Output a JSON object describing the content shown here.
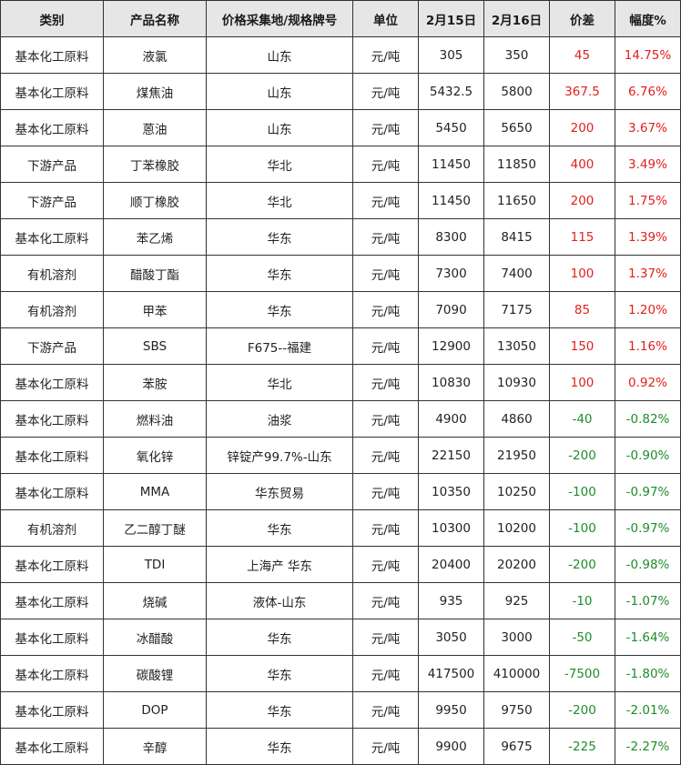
{
  "columns": [
    "类别",
    "产品名称",
    "价格采集地/规格牌号",
    "单位",
    "2月15日",
    "2月16日",
    "价差",
    "幅度%"
  ],
  "colors": {
    "up": "#e0201b",
    "down": "#1d8c2a",
    "header_bg": "#e6e6e6",
    "border": "#333333"
  },
  "rows": [
    {
      "category": "基本化工原料",
      "product": "液氯",
      "location": "山东",
      "unit": "元/吨",
      "feb15": "305",
      "feb16": "350",
      "diff": "45",
      "pct": "14.75%",
      "trend": "up"
    },
    {
      "category": "基本化工原料",
      "product": "煤焦油",
      "location": "山东",
      "unit": "元/吨",
      "feb15": "5432.5",
      "feb16": "5800",
      "diff": "367.5",
      "pct": "6.76%",
      "trend": "up"
    },
    {
      "category": "基本化工原料",
      "product": "蒽油",
      "location": "山东",
      "unit": "元/吨",
      "feb15": "5450",
      "feb16": "5650",
      "diff": "200",
      "pct": "3.67%",
      "trend": "up"
    },
    {
      "category": "下游产品",
      "product": "丁苯橡胶",
      "location": "华北",
      "unit": "元/吨",
      "feb15": "11450",
      "feb16": "11850",
      "diff": "400",
      "pct": "3.49%",
      "trend": "up"
    },
    {
      "category": "下游产品",
      "product": "顺丁橡胶",
      "location": "华北",
      "unit": "元/吨",
      "feb15": "11450",
      "feb16": "11650",
      "diff": "200",
      "pct": "1.75%",
      "trend": "up"
    },
    {
      "category": "基本化工原料",
      "product": "苯乙烯",
      "location": "华东",
      "unit": "元/吨",
      "feb15": "8300",
      "feb16": "8415",
      "diff": "115",
      "pct": "1.39%",
      "trend": "up"
    },
    {
      "category": "有机溶剂",
      "product": "醋酸丁酯",
      "location": "华东",
      "unit": "元/吨",
      "feb15": "7300",
      "feb16": "7400",
      "diff": "100",
      "pct": "1.37%",
      "trend": "up"
    },
    {
      "category": "有机溶剂",
      "product": "甲苯",
      "location": "华东",
      "unit": "元/吨",
      "feb15": "7090",
      "feb16": "7175",
      "diff": "85",
      "pct": "1.20%",
      "trend": "up"
    },
    {
      "category": "下游产品",
      "product": "SBS",
      "location": "F675--福建",
      "unit": "元/吨",
      "feb15": "12900",
      "feb16": "13050",
      "diff": "150",
      "pct": "1.16%",
      "trend": "up"
    },
    {
      "category": "基本化工原料",
      "product": "苯胺",
      "location": "华北",
      "unit": "元/吨",
      "feb15": "10830",
      "feb16": "10930",
      "diff": "100",
      "pct": "0.92%",
      "trend": "up"
    },
    {
      "category": "基本化工原料",
      "product": "燃料油",
      "location": "油浆",
      "unit": "元/吨",
      "feb15": "4900",
      "feb16": "4860",
      "diff": "-40",
      "pct": "-0.82%",
      "trend": "down"
    },
    {
      "category": "基本化工原料",
      "product": "氧化锌",
      "location": "锌锭产99.7%-山东",
      "unit": "元/吨",
      "feb15": "22150",
      "feb16": "21950",
      "diff": "-200",
      "pct": "-0.90%",
      "trend": "down"
    },
    {
      "category": "基本化工原料",
      "product": "MMA",
      "location": "华东贸易",
      "unit": "元/吨",
      "feb15": "10350",
      "feb16": "10250",
      "diff": "-100",
      "pct": "-0.97%",
      "trend": "down"
    },
    {
      "category": "有机溶剂",
      "product": "乙二醇丁醚",
      "location": "华东",
      "unit": "元/吨",
      "feb15": "10300",
      "feb16": "10200",
      "diff": "-100",
      "pct": "-0.97%",
      "trend": "down"
    },
    {
      "category": "基本化工原料",
      "product": "TDI",
      "location": "上海产 华东",
      "unit": "元/吨",
      "feb15": "20400",
      "feb16": "20200",
      "diff": "-200",
      "pct": "-0.98%",
      "trend": "down"
    },
    {
      "category": "基本化工原料",
      "product": "烧碱",
      "location": "液体-山东",
      "unit": "元/吨",
      "feb15": "935",
      "feb16": "925",
      "diff": "-10",
      "pct": "-1.07%",
      "trend": "down"
    },
    {
      "category": "基本化工原料",
      "product": "冰醋酸",
      "location": "华东",
      "unit": "元/吨",
      "feb15": "3050",
      "feb16": "3000",
      "diff": "-50",
      "pct": "-1.64%",
      "trend": "down"
    },
    {
      "category": "基本化工原料",
      "product": "碳酸锂",
      "location": "华东",
      "unit": "元/吨",
      "feb15": "417500",
      "feb16": "410000",
      "diff": "-7500",
      "pct": "-1.80%",
      "trend": "down"
    },
    {
      "category": "基本化工原料",
      "product": "DOP",
      "location": "华东",
      "unit": "元/吨",
      "feb15": "9950",
      "feb16": "9750",
      "diff": "-200",
      "pct": "-2.01%",
      "trend": "down"
    },
    {
      "category": "基本化工原料",
      "product": "辛醇",
      "location": "华东",
      "unit": "元/吨",
      "feb15": "9900",
      "feb16": "9675",
      "diff": "-225",
      "pct": "-2.27%",
      "trend": "down"
    }
  ]
}
